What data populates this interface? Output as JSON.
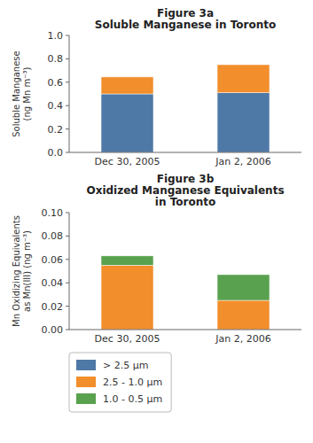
{
  "chart_data": [
    {
      "type": "bar",
      "stacked": true,
      "grid": false,
      "title": "Figure 3a\nSoluble Manganese in Toronto",
      "ylabel": "Soluble Manganese\n(ng Mn m⁻³)",
      "categories": [
        "Dec 30, 2005",
        "Jan 2, 2006"
      ],
      "series": [
        {
          "name": "> 2.5 μm",
          "values": [
            0.5,
            0.51
          ]
        },
        {
          "name": "2.5 - 1.0 μm",
          "values": [
            0.145,
            0.24
          ]
        },
        {
          "name": "1.0 - 0.5 μm",
          "values": [
            0.0,
            0.0
          ]
        }
      ],
      "ylim": [
        0.0,
        1.0
      ],
      "yticks": [
        {
          "value": 0.0,
          "label": "0.0"
        },
        0.2,
        0.4,
        0.6,
        0.8,
        {
          "value": 1.0,
          "label": "1.0"
        }
      ]
    },
    {
      "type": "bar",
      "stacked": true,
      "grid": false,
      "legend": "bottom",
      "title": "Figure 3b\nOxidized Manganese Equivalents\nin Toronto",
      "ylabel": "Mn Oxidizing Equivalents\nas Mn(III) (ng m⁻³)",
      "categories": [
        "Dec 30, 2005",
        "Jan 2, 2006"
      ],
      "series": [
        {
          "name": "> 2.5 μm",
          "values": [
            0.0,
            0.0
          ]
        },
        {
          "name": "2.5 - 1.0 μm",
          "values": [
            0.055,
            0.025
          ]
        },
        {
          "name": "1.0 - 0.5 μm",
          "values": [
            0.008,
            0.022
          ]
        }
      ],
      "ylim": [
        0.0,
        0.1
      ],
      "yticks": [
        {
          "value": 0.0,
          "label": "0.00"
        },
        0.02,
        0.04,
        0.06,
        0.08,
        {
          "value": 0.1,
          "label": "0.10"
        }
      ]
    }
  ]
}
